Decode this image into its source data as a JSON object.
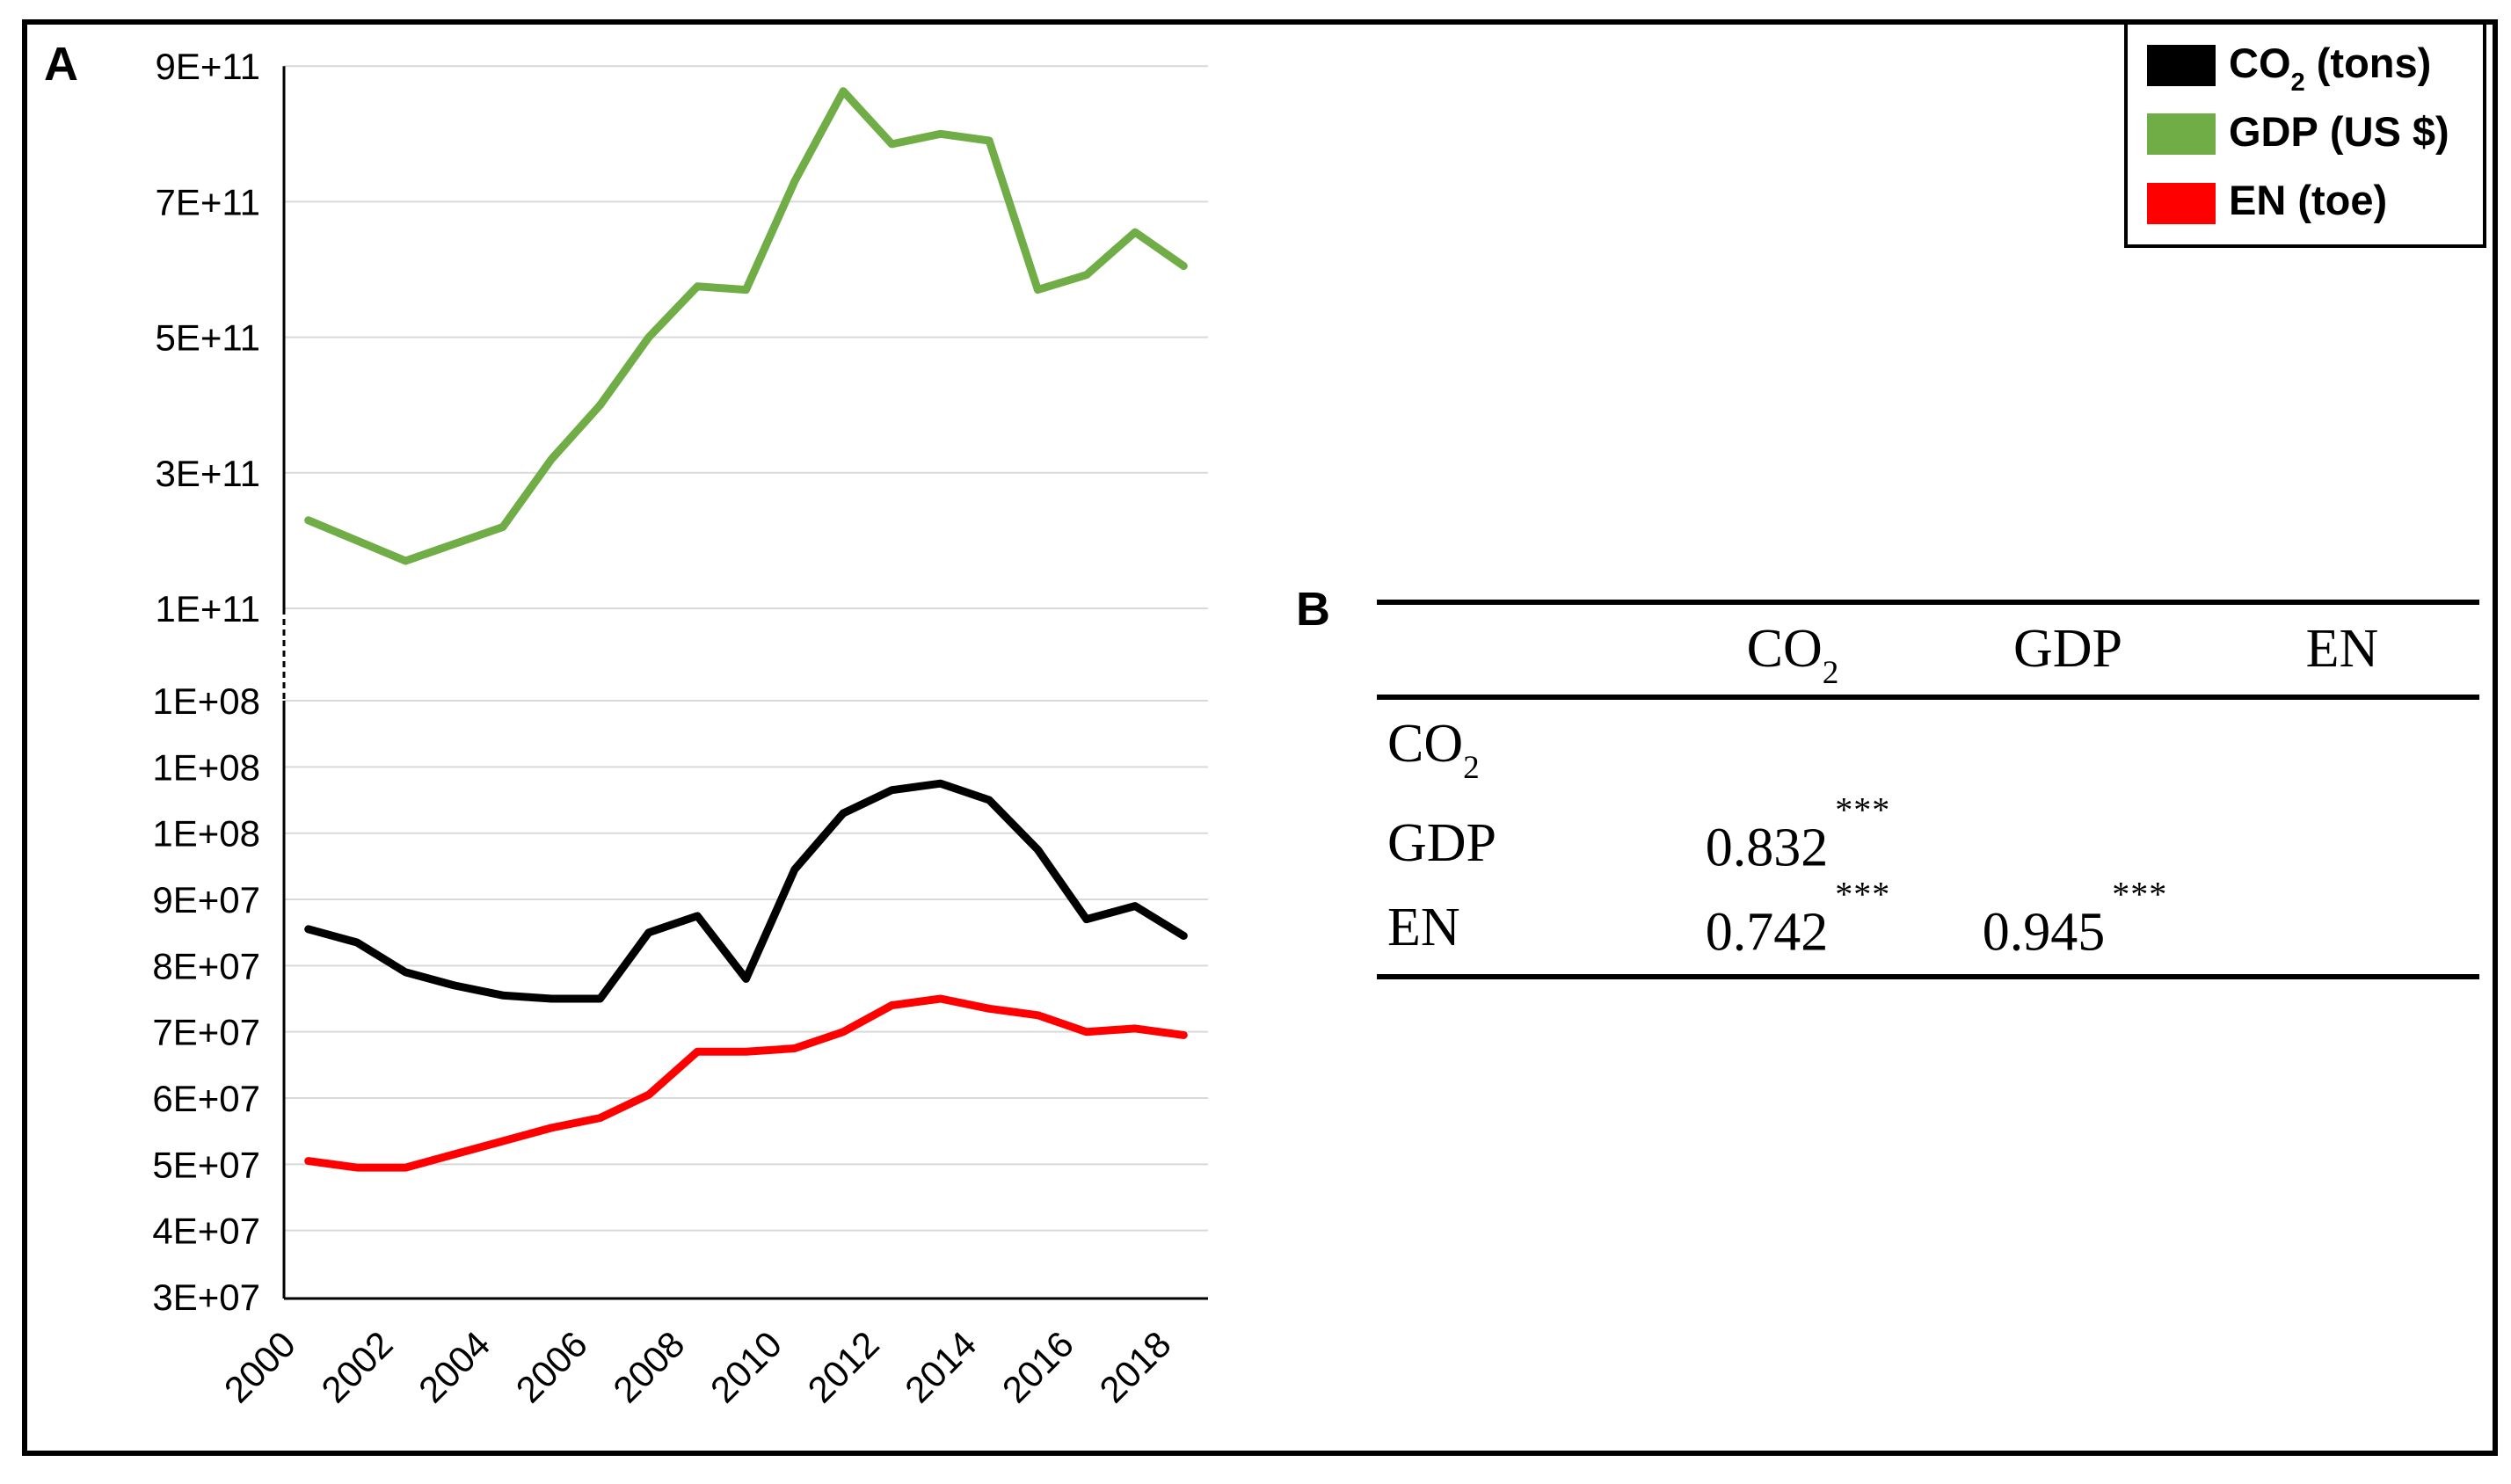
{
  "panels": {
    "a_label": "A",
    "b_label": "B"
  },
  "legend": {
    "items": [
      {
        "name": "co2-tons",
        "prefix": "CO",
        "sub": "2",
        "suffix": " (tons)",
        "color": "#000000"
      },
      {
        "name": "gdp-usd",
        "prefix": "GDP",
        "sub": "",
        "suffix": " (US $)",
        "color": "#70AD47"
      },
      {
        "name": "en-toe",
        "prefix": "EN",
        "sub": "",
        "suffix": " (toe)",
        "color": "#FF0000"
      }
    ]
  },
  "chart_data": {
    "type": "line",
    "title": "",
    "xlabel": "",
    "ylabel": "",
    "grid": true,
    "legend_position": "top-right",
    "broken_y_axis": true,
    "x": [
      2000,
      2001,
      2002,
      2003,
      2004,
      2005,
      2006,
      2007,
      2008,
      2009,
      2010,
      2011,
      2012,
      2013,
      2014,
      2015,
      2016,
      2017,
      2018
    ],
    "x_tick_labels": [
      "2000",
      "2002",
      "2004",
      "2006",
      "2008",
      "2010",
      "2012",
      "2014",
      "2016",
      "2018"
    ],
    "upper_axis": {
      "range": [
        100000000000.0,
        900000000000.0
      ],
      "ticks": [
        {
          "value": 900000000000.0,
          "label": "9E+11",
          "gridline": true
        },
        {
          "value": 700000000000.0,
          "label": "7E+11",
          "gridline": true
        },
        {
          "value": 500000000000.0,
          "label": "5E+11",
          "gridline": true
        },
        {
          "value": 300000000000.0,
          "label": "3E+11",
          "gridline": true
        },
        {
          "value": 100000000000.0,
          "label": "1E+11",
          "gridline": true
        }
      ]
    },
    "lower_axis": {
      "range": [
        30000000.0,
        120000000.0
      ],
      "ticks": [
        {
          "value": 120000000.0,
          "label": "1E+08",
          "gridline": true
        },
        {
          "value": 110000000.0,
          "label": "1E+08",
          "gridline": true
        },
        {
          "value": 100000000.0,
          "label": "1E+08",
          "gridline": true
        },
        {
          "value": 90000000.0,
          "label": "9E+07",
          "gridline": true
        },
        {
          "value": 80000000.0,
          "label": "8E+07",
          "gridline": true
        },
        {
          "value": 70000000.0,
          "label": "7E+07",
          "gridline": true
        },
        {
          "value": 60000000.0,
          "label": "6E+07",
          "gridline": true
        },
        {
          "value": 50000000.0,
          "label": "5E+07",
          "gridline": true
        },
        {
          "value": 40000000.0,
          "label": "4E+07",
          "gridline": true
        },
        {
          "value": 30000000.0,
          "label": "3E+07",
          "gridline": false
        }
      ]
    },
    "series": [
      {
        "name": "CO2 (tons)",
        "axis": "lower",
        "color": "#000000",
        "values": [
          85500000.0,
          83500000.0,
          79000000.0,
          77000000.0,
          75500000.0,
          75000000.0,
          75000000.0,
          85000000.0,
          87500000.0,
          78000000.0,
          94500000.0,
          103000000.0,
          106500000.0,
          107500000.0,
          105000000.0,
          97500000.0,
          87000000.0,
          89000000.0,
          84500000.0
        ]
      },
      {
        "name": "GDP (US $)",
        "axis": "upper",
        "color": "#70AD47",
        "values": [
          230000000000.0,
          200000000000.0,
          170000000000.0,
          195000000000.0,
          220000000000.0,
          320000000000.0,
          400000000000.0,
          500000000000.0,
          575000000000.0,
          570000000000.0,
          730000000000.0,
          863000000000.0,
          785000000000.0,
          800000000000.0,
          790000000000.0,
          570000000000.0,
          592000000000.0,
          655000000000.0,
          605000000000.0
        ]
      },
      {
        "name": "EN (toe)",
        "axis": "lower",
        "color": "#FF0000",
        "values": [
          50500000.0,
          49500000.0,
          49500000.0,
          51500000.0,
          53500000.0,
          55500000.0,
          57000000.0,
          60500000.0,
          67000000.0,
          67000000.0,
          67500000.0,
          70000000.0,
          74000000.0,
          75000000.0,
          73500000.0,
          72500000.0,
          70000000.0,
          70500000.0,
          69500000.0
        ]
      }
    ]
  },
  "table": {
    "headers": [
      {
        "prefix": "CO",
        "sub": "2"
      },
      {
        "prefix": "GDP",
        "sub": ""
      },
      {
        "prefix": "EN",
        "sub": ""
      }
    ],
    "rows": [
      {
        "label": {
          "prefix": "CO",
          "sub": "2"
        }
      },
      {
        "label": {
          "prefix": "GDP",
          "sub": ""
        },
        "cells": {
          "co2": {
            "value": "0.832",
            "stars": "***"
          }
        }
      },
      {
        "label": {
          "prefix": "EN",
          "sub": ""
        },
        "cells": {
          "co2": {
            "value": "0.742",
            "stars": "***"
          },
          "gdp": {
            "value": "0.945",
            "stars": "***"
          }
        }
      }
    ]
  }
}
